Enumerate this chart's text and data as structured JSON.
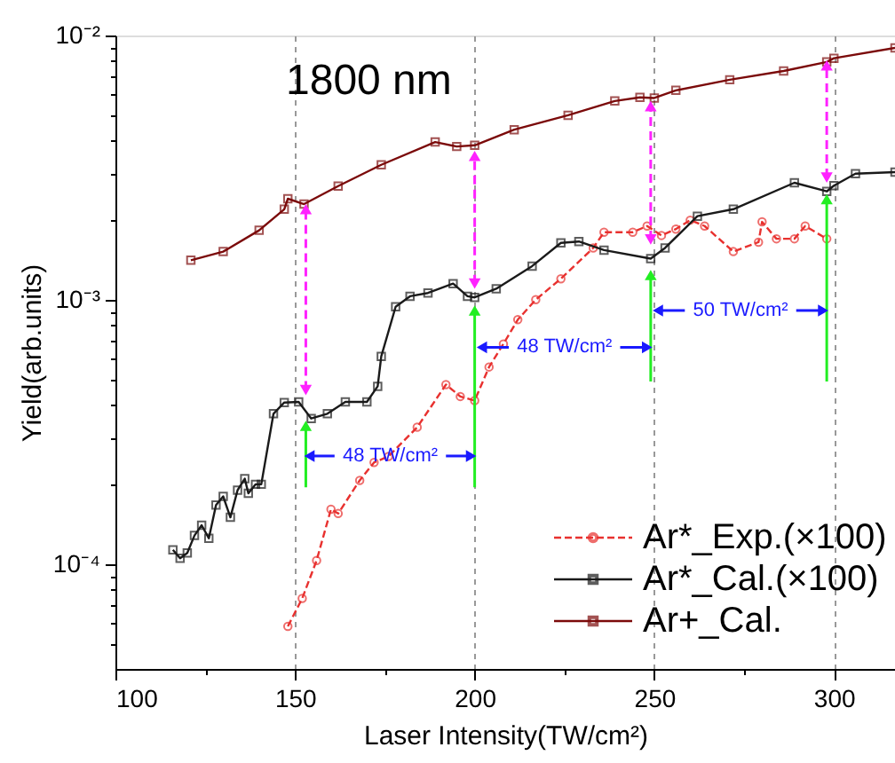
{
  "chart_data": {
    "type": "line",
    "xlabel": "Laser Intensity(TW/cm²)",
    "ylabel": "Yield(arb.units)",
    "xlim": [
      100,
      317
    ],
    "ylim": [
      4e-05,
      0.01
    ],
    "log": "y",
    "grid": "x",
    "legend": "bottom right",
    "xticks": [
      100,
      {
        "value": 125,
        "label": null
      },
      150,
      {
        "value": 175,
        "label": null
      },
      200,
      {
        "value": 225,
        "label": null
      },
      250,
      {
        "value": 275,
        "label": null
      },
      300
    ],
    "yticks": [
      {
        "value": 5e-05,
        "label": null
      },
      {
        "value": 6e-05,
        "label": null
      },
      {
        "value": 7e-05,
        "label": null
      },
      {
        "value": 8e-05,
        "label": null
      },
      {
        "value": 9e-05,
        "label": null
      },
      {
        "value": 0.0001,
        "label": "10⁻⁴"
      },
      {
        "value": 0.0002,
        "label": null
      },
      {
        "value": 0.0003,
        "label": null
      },
      {
        "value": 0.0004,
        "label": null
      },
      {
        "value": 0.0005,
        "label": null
      },
      {
        "value": 0.0006,
        "label": null
      },
      {
        "value": 0.0007,
        "label": null
      },
      {
        "value": 0.0008,
        "label": null
      },
      {
        "value": 0.0009,
        "label": null
      },
      {
        "value": 0.001,
        "label": "10⁻³"
      },
      {
        "value": 0.002,
        "label": null
      },
      {
        "value": 0.003,
        "label": null
      },
      {
        "value": 0.004,
        "label": null
      },
      {
        "value": 0.005,
        "label": null
      },
      {
        "value": 0.006,
        "label": null
      },
      {
        "value": 0.007,
        "label": null
      },
      {
        "value": 0.008,
        "label": null
      },
      {
        "value": 0.009,
        "label": null
      },
      {
        "value": 0.01,
        "label": "10⁻²"
      }
    ],
    "series": [
      {
        "name": "Ar*_Exp.(×100)",
        "color": "#e8312f",
        "marker": "circle",
        "line_style": "dashed",
        "x": [
          148,
          152,
          156,
          160,
          162,
          168,
          172,
          176,
          184,
          192,
          196,
          200,
          204,
          208,
          212,
          217,
          224,
          233,
          236,
          244,
          248,
          252,
          256,
          260,
          264,
          272,
          279,
          280,
          284,
          289,
          292,
          298
        ],
        "values": [
          5.8e-05,
          7.4e-05,
          0.000103,
          0.000161,
          0.000155,
          0.000207,
          0.000242,
          0.000255,
          0.000329,
          0.000477,
          0.00043,
          0.000415,
          0.000556,
          0.00068,
          0.00084,
          0.001,
          0.0012,
          0.00157,
          0.0018,
          0.0018,
          0.0019,
          0.00175,
          0.00185,
          0.002,
          0.0019,
          0.00152,
          0.00165,
          0.00197,
          0.0017,
          0.0017,
          0.0019,
          0.0017
        ]
      },
      {
        "name": "Ar*_Cal.(×100)",
        "color": "#1a1a1a",
        "marker": "square",
        "line_style": "solid",
        "x": [
          116,
          118,
          120,
          122,
          124,
          126,
          128,
          130,
          132,
          134,
          136,
          137,
          139,
          140.6,
          144,
          147,
          151,
          154.5,
          159,
          164,
          170,
          173,
          174,
          178,
          182,
          187,
          194,
          198,
          200,
          206,
          216,
          224,
          229,
          236,
          249,
          253,
          262,
          272,
          289,
          298,
          300,
          306,
          317
        ],
        "values": [
          0.000113,
          0.000105,
          0.00011,
          0.000128,
          0.00014,
          0.000125,
          0.000167,
          0.00018,
          0.00015,
          0.00019,
          0.00021,
          0.000185,
          0.0002,
          0.0002,
          0.00037,
          0.000408,
          0.00041,
          0.000355,
          0.00037,
          0.00041,
          0.00041,
          0.00047,
          0.00061,
          0.00094,
          0.00103,
          0.00106,
          0.00115,
          0.00103,
          0.00102,
          0.0011,
          0.00134,
          0.00164,
          0.00166,
          0.00154,
          0.00143,
          0.00157,
          0.00207,
          0.0022,
          0.00277,
          0.00257,
          0.0027,
          0.003,
          0.00304
        ]
      },
      {
        "name": "Ar+_Cal.",
        "color": "#7b0a0a",
        "marker": "square",
        "line_style": "solid",
        "x": [
          121,
          130,
          140,
          147,
          148,
          152.5,
          162,
          174,
          189,
          195,
          200,
          211,
          226,
          239,
          246,
          250,
          256,
          271,
          286,
          298,
          300,
          317
        ],
        "values": [
          0.00141,
          0.00152,
          0.00183,
          0.0022,
          0.00241,
          0.0023,
          0.00269,
          0.00324,
          0.00395,
          0.0038,
          0.00384,
          0.0044,
          0.00499,
          0.00565,
          0.00583,
          0.0058,
          0.0062,
          0.0068,
          0.00734,
          0.00794,
          0.0082,
          0.00897
        ]
      }
    ],
    "annotations": [
      "1800 nm",
      "48 TW/cm²",
      "48 TW/cm²",
      "50 TW/cm²"
    ]
  }
}
